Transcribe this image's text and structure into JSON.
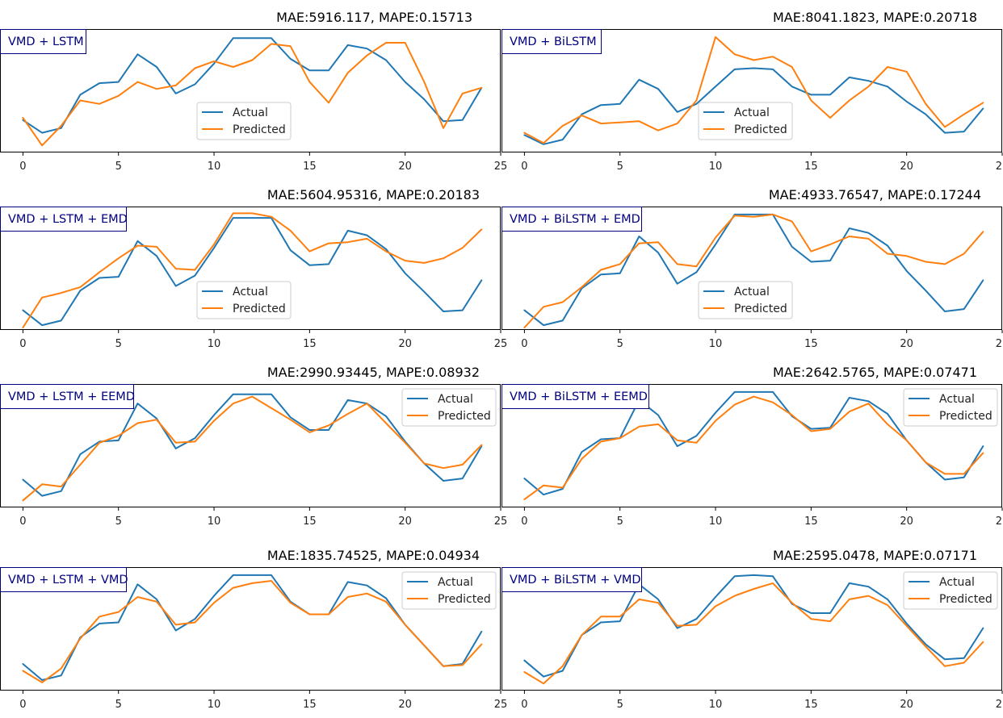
{
  "colors": {
    "actual": "#1f77b4",
    "predicted": "#ff7f0e",
    "model_label": "#000080",
    "axis": "#000000"
  },
  "x_ticks": [
    "0",
    "5",
    "10",
    "15",
    "20",
    "25"
  ],
  "chart_data": [
    {
      "type": "line",
      "label": "VMD + LSTM",
      "title": "MAE:5916.117, MAPE:0.15713",
      "legend_loc": "center",
      "xlim": [
        -1.2,
        25
      ],
      "x": [
        0,
        1,
        2,
        3,
        4,
        5,
        6,
        7,
        8,
        9,
        10,
        11,
        12,
        13,
        14,
        15,
        16,
        17,
        18,
        19,
        20,
        21,
        22,
        23,
        24
      ],
      "series": [
        {
          "name": "Actual",
          "values": [
            0.26,
            0.15,
            0.19,
            0.48,
            0.58,
            0.59,
            0.83,
            0.72,
            0.49,
            0.57,
            0.75,
            0.97,
            0.97,
            0.97,
            0.79,
            0.69,
            0.69,
            0.91,
            0.88,
            0.78,
            0.59,
            0.44,
            0.25,
            0.26,
            0.54
          ]
        },
        {
          "name": "Predicted",
          "values": [
            0.28,
            0.04,
            0.21,
            0.43,
            0.4,
            0.47,
            0.59,
            0.53,
            0.56,
            0.71,
            0.77,
            0.72,
            0.78,
            0.92,
            0.9,
            0.59,
            0.41,
            0.67,
            0.82,
            0.93,
            0.93,
            0.59,
            0.19,
            0.49,
            0.54
          ]
        }
      ]
    },
    {
      "type": "line",
      "label": "VMD + BiLSTM",
      "title": "MAE:8041.1823, MAPE:0.20718",
      "legend_loc": "center",
      "xlim": [
        -1.2,
        25
      ],
      "x": [
        0,
        1,
        2,
        3,
        4,
        5,
        6,
        7,
        8,
        9,
        10,
        11,
        12,
        13,
        14,
        15,
        16,
        17,
        18,
        19,
        20,
        21,
        22,
        23,
        24
      ],
      "series": [
        {
          "name": "Actual",
          "values": [
            0.13,
            0.05,
            0.09,
            0.31,
            0.39,
            0.4,
            0.61,
            0.53,
            0.33,
            0.4,
            0.55,
            0.7,
            0.71,
            0.7,
            0.55,
            0.48,
            0.48,
            0.63,
            0.6,
            0.55,
            0.42,
            0.31,
            0.15,
            0.16,
            0.36
          ]
        },
        {
          "name": "Predicted",
          "values": [
            0.15,
            0.06,
            0.21,
            0.3,
            0.23,
            0.24,
            0.25,
            0.17,
            0.23,
            0.43,
            0.98,
            0.83,
            0.78,
            0.81,
            0.72,
            0.43,
            0.28,
            0.43,
            0.55,
            0.72,
            0.68,
            0.4,
            0.2,
            0.31,
            0.41
          ]
        }
      ]
    },
    {
      "type": "line",
      "label": "VMD + LSTM + EMD",
      "title": "MAE:5604.95316, MAPE:0.20183",
      "legend_loc": "center",
      "xlim": [
        -1.2,
        25
      ],
      "x": [
        0,
        1,
        2,
        3,
        4,
        5,
        6,
        7,
        8,
        9,
        10,
        11,
        12,
        13,
        14,
        15,
        16,
        17,
        18,
        19,
        20,
        21,
        22,
        23,
        24
      ],
      "series": [
        {
          "name": "Actual",
          "values": [
            0.15,
            0.02,
            0.06,
            0.32,
            0.43,
            0.44,
            0.75,
            0.62,
            0.36,
            0.45,
            0.69,
            0.95,
            0.95,
            0.95,
            0.67,
            0.54,
            0.55,
            0.84,
            0.8,
            0.68,
            0.47,
            0.31,
            0.14,
            0.15,
            0.41
          ]
        },
        {
          "name": "Predicted",
          "values": [
            0.0,
            0.26,
            0.3,
            0.35,
            0.48,
            0.6,
            0.71,
            0.7,
            0.51,
            0.5,
            0.72,
            0.99,
            0.99,
            0.96,
            0.84,
            0.66,
            0.73,
            0.74,
            0.77,
            0.66,
            0.58,
            0.56,
            0.6,
            0.69,
            0.85
          ]
        }
      ]
    },
    {
      "type": "line",
      "label": "VMD + BiLSTM + EMD",
      "title": "MAE:4933.76547, MAPE:0.17244",
      "legend_loc": "center",
      "xlim": [
        -1.2,
        25
      ],
      "x": [
        0,
        1,
        2,
        3,
        4,
        5,
        6,
        7,
        8,
        9,
        10,
        11,
        12,
        13,
        14,
        15,
        16,
        17,
        18,
        19,
        20,
        21,
        22,
        23,
        24
      ],
      "series": [
        {
          "name": "Actual",
          "values": [
            0.15,
            0.02,
            0.06,
            0.34,
            0.46,
            0.47,
            0.79,
            0.65,
            0.38,
            0.48,
            0.72,
            0.98,
            0.98,
            0.98,
            0.7,
            0.57,
            0.58,
            0.86,
            0.82,
            0.71,
            0.49,
            0.32,
            0.14,
            0.16,
            0.41
          ]
        },
        {
          "name": "Predicted",
          "values": [
            0.0,
            0.18,
            0.22,
            0.35,
            0.5,
            0.55,
            0.73,
            0.74,
            0.55,
            0.53,
            0.78,
            0.97,
            0.96,
            0.98,
            0.92,
            0.66,
            0.72,
            0.79,
            0.77,
            0.64,
            0.62,
            0.57,
            0.55,
            0.64,
            0.83
          ]
        }
      ]
    },
    {
      "type": "line",
      "label": "VMD + LSTM + EEMD",
      "title": "MAE:2990.93445, MAPE:0.08932",
      "legend_loc": "top-right",
      "xlim": [
        -1.2,
        25
      ],
      "x": [
        0,
        1,
        2,
        3,
        4,
        5,
        6,
        7,
        8,
        9,
        10,
        11,
        12,
        13,
        14,
        15,
        16,
        17,
        18,
        19,
        20,
        21,
        22,
        23,
        24
      ],
      "series": [
        {
          "name": "Actual",
          "values": [
            0.22,
            0.08,
            0.12,
            0.44,
            0.55,
            0.56,
            0.88,
            0.75,
            0.49,
            0.58,
            0.78,
            0.96,
            0.96,
            0.96,
            0.76,
            0.65,
            0.65,
            0.91,
            0.88,
            0.77,
            0.55,
            0.36,
            0.21,
            0.23,
            0.51
          ]
        },
        {
          "name": "Predicted",
          "values": [
            0.04,
            0.18,
            0.16,
            0.35,
            0.54,
            0.6,
            0.71,
            0.74,
            0.54,
            0.55,
            0.73,
            0.88,
            0.94,
            0.84,
            0.74,
            0.63,
            0.69,
            0.79,
            0.88,
            0.71,
            0.54,
            0.36,
            0.32,
            0.35,
            0.52
          ]
        }
      ]
    },
    {
      "type": "line",
      "label": "VMD + BiLSTM + EEMD",
      "title": "MAE:2642.5765, MAPE:0.07471",
      "legend_loc": "top-right",
      "xlim": [
        -1.2,
        25
      ],
      "x": [
        0,
        1,
        2,
        3,
        4,
        5,
        6,
        7,
        8,
        9,
        10,
        11,
        12,
        13,
        14,
        15,
        16,
        17,
        18,
        19,
        20,
        21,
        22,
        23,
        24
      ],
      "series": [
        {
          "name": "Actual",
          "values": [
            0.23,
            0.09,
            0.14,
            0.46,
            0.57,
            0.58,
            0.91,
            0.78,
            0.51,
            0.6,
            0.8,
            0.98,
            0.98,
            0.98,
            0.77,
            0.66,
            0.67,
            0.93,
            0.9,
            0.79,
            0.56,
            0.37,
            0.22,
            0.24,
            0.51
          ]
        },
        {
          "name": "Predicted",
          "values": [
            0.05,
            0.17,
            0.15,
            0.4,
            0.55,
            0.58,
            0.68,
            0.7,
            0.56,
            0.54,
            0.73,
            0.87,
            0.94,
            0.89,
            0.78,
            0.64,
            0.66,
            0.81,
            0.88,
            0.7,
            0.56,
            0.37,
            0.27,
            0.27,
            0.45
          ]
        }
      ]
    },
    {
      "type": "line",
      "label": "VMD + LSTM + VMD",
      "title": "MAE:1835.74525, MAPE:0.04934",
      "legend_loc": "top-right",
      "xlim": [
        -1.2,
        25
      ],
      "x": [
        0,
        1,
        2,
        3,
        4,
        5,
        6,
        7,
        8,
        9,
        10,
        11,
        12,
        13,
        14,
        15,
        16,
        17,
        18,
        19,
        20,
        21,
        22,
        23,
        24
      ],
      "series": [
        {
          "name": "Actual",
          "values": [
            0.21,
            0.07,
            0.11,
            0.44,
            0.56,
            0.57,
            0.9,
            0.77,
            0.5,
            0.6,
            0.8,
            0.98,
            0.98,
            0.98,
            0.75,
            0.64,
            0.64,
            0.92,
            0.89,
            0.78,
            0.55,
            0.37,
            0.19,
            0.21,
            0.49
          ]
        },
        {
          "name": "Predicted",
          "values": [
            0.15,
            0.05,
            0.17,
            0.43,
            0.62,
            0.66,
            0.79,
            0.75,
            0.55,
            0.57,
            0.74,
            0.87,
            0.91,
            0.93,
            0.74,
            0.64,
            0.64,
            0.79,
            0.82,
            0.75,
            0.55,
            0.37,
            0.19,
            0.2,
            0.38
          ]
        }
      ]
    },
    {
      "type": "line",
      "label": "VMD + BiLSTM + VMD",
      "title": "MAE:2595.0478, MAPE:0.07171",
      "legend_loc": "top-right",
      "xlim": [
        -1.2,
        25
      ],
      "x": [
        0,
        1,
        2,
        3,
        4,
        5,
        6,
        7,
        8,
        9,
        10,
        11,
        12,
        13,
        14,
        15,
        16,
        17,
        18,
        19,
        20,
        21,
        22,
        23,
        24
      ],
      "series": [
        {
          "name": "Actual",
          "values": [
            0.24,
            0.1,
            0.15,
            0.46,
            0.57,
            0.58,
            0.9,
            0.77,
            0.52,
            0.6,
            0.79,
            0.97,
            0.98,
            0.97,
            0.73,
            0.65,
            0.65,
            0.91,
            0.88,
            0.77,
            0.56,
            0.38,
            0.25,
            0.26,
            0.52
          ]
        },
        {
          "name": "Predicted",
          "values": [
            0.14,
            0.04,
            0.19,
            0.46,
            0.62,
            0.62,
            0.77,
            0.74,
            0.54,
            0.55,
            0.71,
            0.8,
            0.86,
            0.91,
            0.74,
            0.6,
            0.58,
            0.77,
            0.8,
            0.72,
            0.54,
            0.36,
            0.19,
            0.22,
            0.4
          ]
        }
      ]
    }
  ]
}
